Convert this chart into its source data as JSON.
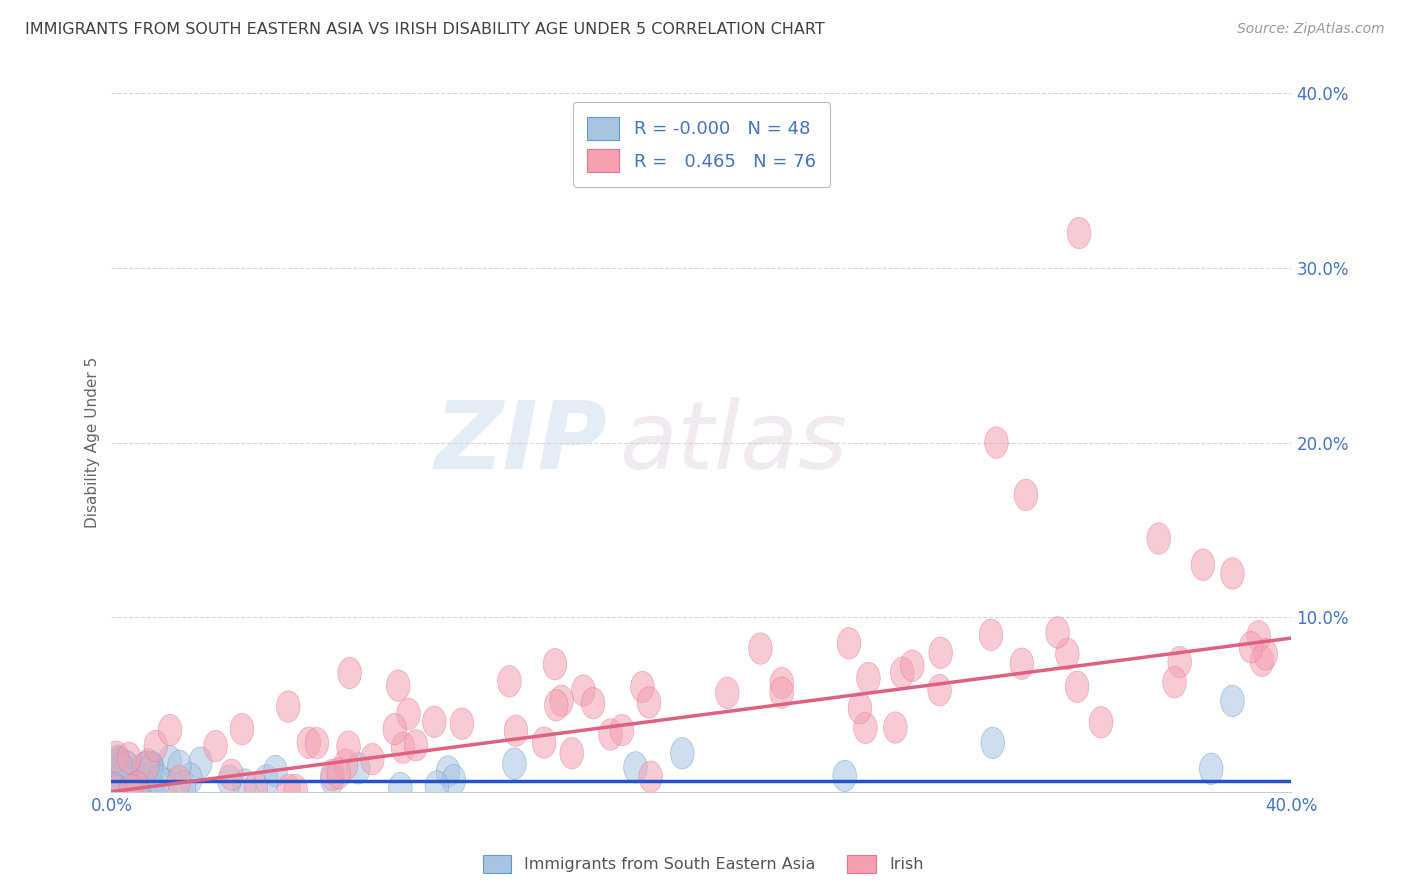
{
  "title": "IMMIGRANTS FROM SOUTH EASTERN ASIA VS IRISH DISABILITY AGE UNDER 5 CORRELATION CHART",
  "source": "Source: ZipAtlas.com",
  "ylabel": "Disability Age Under 5",
  "legend_entry1": {
    "label": "Immigrants from South Eastern Asia",
    "R": "-0.000",
    "N": "48",
    "color": "#a8c4e0"
  },
  "legend_entry2": {
    "label": "Irish",
    "R": "0.465",
    "N": "76",
    "color": "#f4a0b0"
  },
  "xlim": [
    0.0,
    0.4
  ],
  "ylim": [
    0.0,
    0.4
  ],
  "watermark_zip": "ZIP",
  "watermark_atlas": "atlas",
  "background_color": "#ffffff",
  "grid_color": "#cccccc",
  "title_color": "#404040",
  "axis_label_color": "#4472c4",
  "blue_marker_color": "#a8c4e0",
  "blue_marker_edge": "#5b9bd5",
  "pink_marker_color": "#f4a0b0",
  "pink_marker_edge": "#e87090",
  "trend_blue_color": "#2255cc",
  "trend_pink_color": "#e06080",
  "blue_line_y": [
    0.006,
    0.006
  ],
  "pink_line_y": [
    0.0,
    0.088
  ]
}
